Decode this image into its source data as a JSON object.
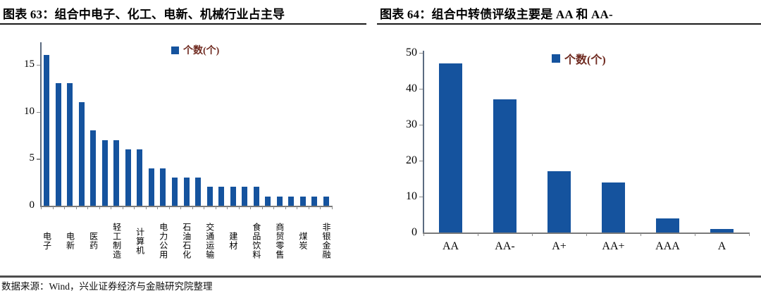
{
  "colors": {
    "bar": "#15539e",
    "legend_text": "#6f2a20",
    "axis_line": "#5b6b80",
    "tick": "#8a8a8a",
    "baseline": "#7a7a7a",
    "title_underline": "#1a1a1a"
  },
  "footer": {
    "source": "数据来源：Wind，兴业证券经济与金融研究院整理"
  },
  "chart_data": [
    {
      "type": "bar",
      "title": "图表 63：组合中电子、化工、电新、机械行业占主导",
      "legend": "个数(个)",
      "categories": [
        "电子",
        "",
        "电新",
        "",
        "医药",
        "",
        "轻工制造",
        "",
        "计算机",
        "",
        "电力公用",
        "",
        "石油石化",
        "",
        "交通运输",
        "",
        "建材",
        "",
        "食品饮料",
        "",
        "商贸零售",
        "",
        "煤炭",
        "",
        "非银金融"
      ],
      "values": [
        16,
        13,
        13,
        11,
        8,
        7,
        7,
        6,
        6,
        4,
        4,
        3,
        3,
        3,
        2,
        2,
        2,
        2,
        2,
        1,
        1,
        1,
        1,
        1,
        1
      ],
      "xlabel": "",
      "ylabel": "",
      "yticks": [
        0,
        5,
        10,
        15
      ],
      "ylim": [
        0,
        17.4
      ],
      "grid": false,
      "legend_position": "top-center",
      "note": "x-axis labels shown only under every other bar"
    },
    {
      "type": "bar",
      "title": "图表 64：组合中转债评级主要是 AA 和 AA-",
      "legend": "个数(个)",
      "categories": [
        "AA",
        "AA-",
        "A+",
        "AA+",
        "AAA",
        "A"
      ],
      "values": [
        47,
        37,
        17,
        14,
        4,
        1
      ],
      "xlabel": "",
      "ylabel": "",
      "yticks": [
        0,
        10,
        20,
        30,
        40,
        50
      ],
      "ylim": [
        0,
        50.6
      ],
      "grid": false,
      "legend_position": "top-center"
    }
  ]
}
